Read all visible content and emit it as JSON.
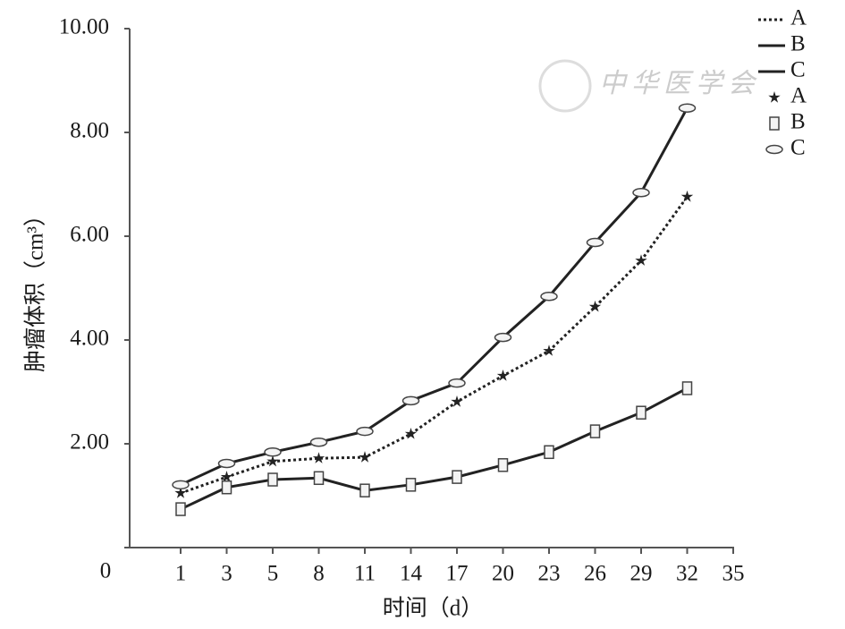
{
  "chart_data": {
    "type": "line",
    "y_label": "肿瘤体积（cm³）",
    "x_label": "时间（d）",
    "watermark": "中华医学会",
    "categories": [
      "1",
      "3",
      "5",
      "8",
      "11",
      "14",
      "17",
      "20",
      "23",
      "26",
      "29",
      "32",
      "35"
    ],
    "ylim": [
      0,
      10
    ],
    "yticks": [
      {
        "value": 0,
        "label": "0"
      },
      {
        "value": 2,
        "label": "2.00"
      },
      {
        "value": 4,
        "label": "4.00"
      },
      {
        "value": 6,
        "label": "6.00"
      },
      {
        "value": 8,
        "label": "8.00"
      },
      {
        "value": 10,
        "label": "10.00"
      }
    ],
    "legend": "upper right",
    "series": [
      {
        "name": "A",
        "color": "#222222",
        "line_style": "dotted",
        "marker": "star",
        "values": [
          1.05,
          1.36,
          1.66,
          1.72,
          1.74,
          2.19,
          2.81,
          3.31,
          3.79,
          4.64,
          5.53,
          6.76,
          null
        ]
      },
      {
        "name": "B",
        "color": "#222222",
        "line_style": "solid",
        "marker": "square",
        "values": [
          0.74,
          1.16,
          1.31,
          1.34,
          1.1,
          1.21,
          1.36,
          1.59,
          1.84,
          2.24,
          2.6,
          3.07,
          null
        ]
      },
      {
        "name": "C",
        "color": "#222222",
        "line_style": "solid",
        "marker": "ellipse",
        "values": [
          1.21,
          1.62,
          1.84,
          2.03,
          2.24,
          2.83,
          3.17,
          4.05,
          4.84,
          5.88,
          6.84,
          8.47,
          null
        ]
      }
    ]
  }
}
